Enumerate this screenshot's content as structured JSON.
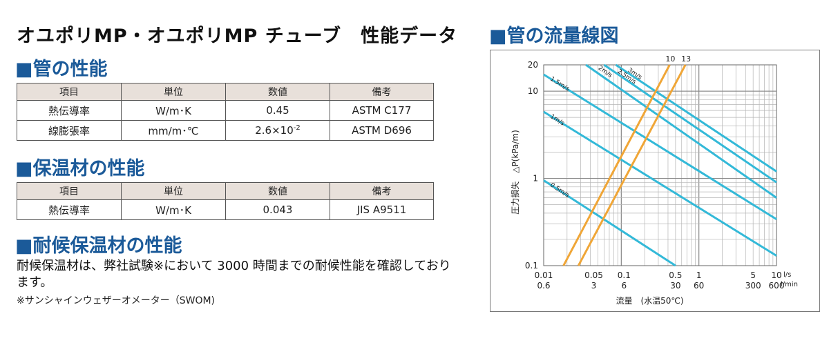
{
  "header": {
    "title": "オユポリMP・オユポリMP チューブ　性能データ"
  },
  "pipe_section": {
    "heading": "■管の性能",
    "columns": [
      "項目",
      "単位",
      "数値",
      "備考"
    ],
    "rows": [
      {
        "item": "熱伝導率",
        "unit": "W/m･K",
        "value": "0.45",
        "note": "ASTM C177"
      },
      {
        "item": "線膨張率",
        "unit": "mm/m･℃",
        "value": "2.6×10",
        "exp": "-2",
        "note": "ASTM D696"
      }
    ]
  },
  "insulation_section": {
    "heading": "■保温材の性能",
    "columns": [
      "項目",
      "単位",
      "数値",
      "備考"
    ],
    "rows": [
      {
        "item": "熱伝導率",
        "unit": "W/m･K",
        "value": "0.043",
        "note": "JIS A9511"
      }
    ]
  },
  "weather_section": {
    "heading": "■耐候保温材の性能",
    "body": "耐候保温材は、弊社試験※において 3000 時間までの耐候性能を確認しております。",
    "footnote": "※サンシャインウェザーオメーター（SWOM)"
  },
  "chart_data": {
    "type": "line",
    "title": "■管の流量線図",
    "xlabel": "流量　(水温50℃)",
    "ylabel": "圧力損失　△P(kPa/m)",
    "x_scale": "log",
    "y_scale": "log",
    "xlim": [
      0.01,
      10
    ],
    "ylim": [
      0.1,
      20
    ],
    "x_unit_top": "l/s",
    "x_unit_bottom": "l/min",
    "x_ticks_ls": [
      "0.01",
      "0.05",
      "0.1",
      "0.5",
      "1",
      "5",
      "10"
    ],
    "x_ticks_lmin": [
      "0.6",
      "3",
      "6",
      "30",
      "60",
      "300",
      "600"
    ],
    "y_ticks": [
      "20",
      "10",
      "1",
      "0.1"
    ],
    "velocity_series": [
      {
        "name": "0.5m/s",
        "points": [
          [
            0.01,
            0.95
          ],
          [
            0.5,
            0.1
          ]
        ]
      },
      {
        "name": "1m/s",
        "points": [
          [
            0.01,
            5.8
          ],
          [
            10,
            0.13
          ]
        ]
      },
      {
        "name": "1.5m/s",
        "points": [
          [
            0.01,
            15.5
          ],
          [
            10,
            0.34
          ]
        ]
      },
      {
        "name": "2m/s",
        "points": [
          [
            0.035,
            20
          ],
          [
            10,
            0.6
          ]
        ]
      },
      {
        "name": "2.5m/s",
        "points": [
          [
            0.06,
            20
          ],
          [
            10,
            0.9
          ]
        ]
      },
      {
        "name": "3m/s",
        "points": [
          [
            0.085,
            20
          ],
          [
            10,
            1.2
          ]
        ]
      }
    ],
    "pipe_series": [
      {
        "name": "10",
        "points": [
          [
            0.018,
            0.1
          ],
          [
            0.42,
            20
          ]
        ]
      },
      {
        "name": "13",
        "points": [
          [
            0.028,
            0.1
          ],
          [
            0.67,
            20
          ]
        ]
      }
    ],
    "colors": {
      "velocity": "#33b9d8",
      "pipe": "#f0a637",
      "grid": "#b5b5b5"
    }
  }
}
